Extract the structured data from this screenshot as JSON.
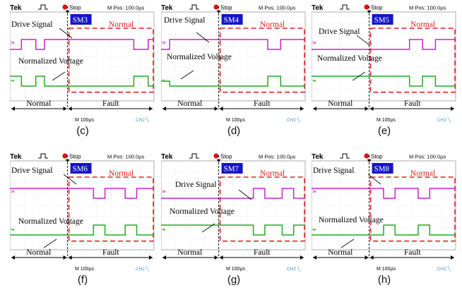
{
  "common": {
    "brand": "Tek",
    "status": "Stop",
    "mpos": "M Pos: 100.0µs",
    "timebase": "M 100µs",
    "ch2": "CH2 ╲",
    "drive_label": "Drive Signal",
    "voltage_label": "Normalized Voltage",
    "box_label": "Normal",
    "span_normal": "Normal",
    "span_fault": "Fault",
    "ch3_marker": "3▸",
    "ch4_marker": "4▸"
  },
  "colors": {
    "drive": "#cc22cc",
    "voltage": "#22aa22",
    "fault_box": "#e02020",
    "badge_bg": "#1515c8",
    "stop": "#dd1111",
    "grid": "#bbbbbb"
  },
  "chart_data": [
    {
      "type": "line",
      "panel": "(c)",
      "submodule": "SM3",
      "x_unit": "µs",
      "xlim": [
        0,
        1000
      ],
      "fault_time": 400,
      "series": [
        {
          "name": "Drive Signal",
          "levels": [
            "high",
            "low"
          ],
          "points": [
            [
              0,
              0
            ],
            [
              80,
              0
            ],
            [
              80,
              1
            ],
            [
              180,
              1
            ],
            [
              180,
              0
            ],
            [
              240,
              0
            ],
            [
              240,
              1
            ],
            [
              860,
              1
            ],
            [
              860,
              0
            ],
            [
              960,
              0
            ],
            [
              960,
              1
            ],
            [
              1000,
              1
            ]
          ]
        },
        {
          "name": "Normalized Voltage",
          "levels": [
            "high",
            "low"
          ],
          "points": [
            [
              0,
              1
            ],
            [
              80,
              1
            ],
            [
              80,
              0
            ],
            [
              180,
              0
            ],
            [
              180,
              1
            ],
            [
              240,
              1
            ],
            [
              240,
              0
            ],
            [
              860,
              0
            ],
            [
              860,
              1
            ],
            [
              960,
              1
            ],
            [
              960,
              0
            ],
            [
              1000,
              0
            ]
          ]
        }
      ]
    },
    {
      "type": "line",
      "panel": "(d)",
      "submodule": "SM4",
      "x_unit": "µs",
      "xlim": [
        0,
        1000
      ],
      "fault_time": 400,
      "series": [
        {
          "name": "Drive Signal",
          "levels": [
            "high",
            "low"
          ],
          "points": [
            [
              0,
              0
            ],
            [
              60,
              0
            ],
            [
              60,
              1
            ],
            [
              740,
              1
            ],
            [
              740,
              0
            ],
            [
              830,
              0
            ],
            [
              830,
              1
            ],
            [
              1000,
              1
            ]
          ]
        },
        {
          "name": "Normalized Voltage",
          "levels": [
            "high",
            "low"
          ],
          "points": [
            [
              0,
              0.5
            ],
            [
              60,
              0.5
            ],
            [
              60,
              0
            ],
            [
              740,
              0
            ],
            [
              740,
              1
            ],
            [
              830,
              1
            ],
            [
              830,
              0
            ],
            [
              1000,
              0
            ]
          ]
        }
      ]
    },
    {
      "type": "line",
      "panel": "(e)",
      "submodule": "SM5",
      "x_unit": "µs",
      "xlim": [
        0,
        1000
      ],
      "fault_time": 400,
      "series": [
        {
          "name": "Drive Signal",
          "levels": [
            "high",
            "low"
          ],
          "points": [
            [
              0,
              0
            ],
            [
              680,
              0
            ],
            [
              680,
              1
            ],
            [
              770,
              1
            ],
            [
              770,
              0
            ],
            [
              860,
              0
            ],
            [
              860,
              1
            ],
            [
              1000,
              1
            ]
          ]
        },
        {
          "name": "Normalized Voltage",
          "levels": [
            "high",
            "low"
          ],
          "points": [
            [
              0,
              1
            ],
            [
              680,
              1
            ],
            [
              680,
              0
            ],
            [
              770,
              0
            ],
            [
              770,
              1
            ],
            [
              860,
              1
            ],
            [
              860,
              0
            ],
            [
              1000,
              0
            ]
          ]
        }
      ]
    },
    {
      "type": "line",
      "panel": "(f)",
      "submodule": "SM6",
      "x_unit": "µs",
      "xlim": [
        0,
        1000
      ],
      "fault_time": 400,
      "series": [
        {
          "name": "Drive Signal",
          "levels": [
            "high",
            "low"
          ],
          "points": [
            [
              0,
              1
            ],
            [
              580,
              1
            ],
            [
              580,
              0
            ],
            [
              660,
              0
            ],
            [
              660,
              1
            ],
            [
              800,
              1
            ],
            [
              800,
              0
            ],
            [
              880,
              0
            ],
            [
              880,
              1
            ],
            [
              1000,
              1
            ]
          ]
        },
        {
          "name": "Normalized Voltage",
          "levels": [
            "high",
            "low"
          ],
          "points": [
            [
              0,
              0
            ],
            [
              580,
              0
            ],
            [
              580,
              1
            ],
            [
              660,
              1
            ],
            [
              660,
              0
            ],
            [
              800,
              0
            ],
            [
              800,
              1
            ],
            [
              880,
              1
            ],
            [
              880,
              0
            ],
            [
              1000,
              0
            ]
          ]
        }
      ]
    },
    {
      "type": "line",
      "panel": "(g)",
      "submodule": "SM7",
      "x_unit": "µs",
      "xlim": [
        0,
        1000
      ],
      "fault_time": 400,
      "series": [
        {
          "name": "Drive Signal",
          "levels": [
            "high",
            "low"
          ],
          "points": [
            [
              0,
              0
            ],
            [
              640,
              0
            ],
            [
              640,
              1
            ],
            [
              720,
              1
            ],
            [
              720,
              0
            ],
            [
              840,
              0
            ],
            [
              840,
              1
            ],
            [
              920,
              1
            ],
            [
              920,
              0
            ],
            [
              1000,
              0
            ]
          ]
        },
        {
          "name": "Normalized Voltage",
          "levels": [
            "high",
            "low"
          ],
          "points": [
            [
              0,
              1
            ],
            [
              640,
              1
            ],
            [
              640,
              0
            ],
            [
              720,
              0
            ],
            [
              720,
              1
            ],
            [
              840,
              1
            ],
            [
              840,
              0
            ],
            [
              920,
              0
            ],
            [
              920,
              1
            ],
            [
              1000,
              1
            ]
          ]
        }
      ]
    },
    {
      "type": "line",
      "panel": "(h)",
      "submodule": "SM8",
      "x_unit": "µs",
      "xlim": [
        0,
        1000
      ],
      "fault_time": 400,
      "series": [
        {
          "name": "Drive Signal",
          "levels": [
            "high",
            "low"
          ],
          "points": [
            [
              0,
              1
            ],
            [
              500,
              1
            ],
            [
              500,
              0
            ],
            [
              580,
              0
            ],
            [
              580,
              1
            ],
            [
              740,
              1
            ],
            [
              740,
              0
            ],
            [
              820,
              0
            ],
            [
              820,
              1
            ],
            [
              1000,
              1
            ]
          ]
        },
        {
          "name": "Normalized Voltage",
          "levels": [
            "high",
            "low"
          ],
          "points": [
            [
              0,
              0
            ],
            [
              500,
              0
            ],
            [
              500,
              1
            ],
            [
              580,
              1
            ],
            [
              580,
              0
            ],
            [
              740,
              0
            ],
            [
              740,
              1
            ],
            [
              820,
              1
            ],
            [
              820,
              0
            ],
            [
              1000,
              0
            ]
          ]
        }
      ]
    }
  ]
}
